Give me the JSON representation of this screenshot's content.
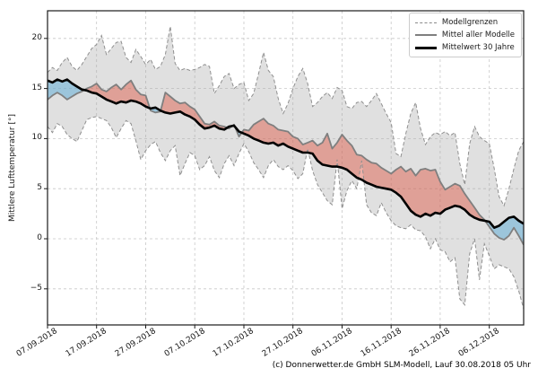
{
  "caption": "(c) Donnerwetter.de GmbH SLM-Modell, Lauf 30.08.2018 05 Uhr",
  "chart_data": {
    "type": "line",
    "title": "",
    "xlabel": "",
    "ylabel": "Mittlere Lufttemperatur [°]",
    "ylim": [
      -8.6,
      22.8
    ],
    "yticks": [
      -5,
      0,
      5,
      10,
      15,
      20
    ],
    "grid": "dashed",
    "legend_position": "upper right",
    "legend": [
      "Modellgrenzen",
      "Mittel aller Modelle",
      "Mittelwert 30 Jahre"
    ],
    "x_tick_labels": [
      "07.09.2018",
      "17.09.2018",
      "27.09.2018",
      "07.10.2018",
      "17.10.2018",
      "27.10.2018",
      "06.11.2018",
      "16.11.2018",
      "26.11.2018",
      "06.12.2018"
    ],
    "x_tick_days": [
      0,
      10,
      20,
      30,
      40,
      50,
      60,
      70,
      80,
      90
    ],
    "n_days": 98,
    "series": [
      {
        "name": "Modellgrenzen (Maximum)",
        "role": "upper",
        "style": "dashed",
        "values": [
          16.6,
          17.1,
          16.8,
          17.6,
          18.1,
          17.2,
          16.8,
          17.4,
          18.2,
          19.0,
          19.4,
          20.3,
          18.4,
          19.0,
          19.6,
          19.7,
          18.1,
          17.6,
          18.9,
          18.2,
          17.4,
          17.9,
          16.9,
          17.2,
          18.4,
          21.2,
          17.5,
          16.8,
          17.0,
          16.8,
          16.9,
          17.1,
          17.4,
          17.2,
          14.5,
          15.3,
          16.2,
          16.5,
          15.0,
          15.4,
          15.6,
          13.8,
          14.5,
          16.5,
          18.6,
          16.8,
          16.2,
          14.0,
          12.5,
          13.5,
          15.0,
          16.2,
          17.0,
          15.5,
          13.2,
          13.6,
          14.2,
          14.6,
          14.0,
          15.1,
          14.8,
          13.2,
          13.0,
          13.6,
          13.7,
          13.2,
          13.8,
          14.5,
          13.5,
          12.5,
          11.6,
          8.5,
          8.2,
          10.5,
          12.5,
          13.6,
          11.0,
          9.4,
          10.2,
          10.6,
          10.4,
          10.7,
          10.3,
          10.6,
          7.5,
          5.4,
          9.5,
          11.2,
          10.2,
          9.8,
          9.5,
          7.0,
          4.2,
          3.3,
          5.0,
          7.0,
          8.8,
          9.7
        ]
      },
      {
        "name": "Modellgrenzen (Minimum)",
        "role": "lower",
        "style": "dashed",
        "values": [
          11.2,
          10.6,
          11.5,
          11.2,
          10.4,
          10.0,
          9.7,
          10.8,
          11.9,
          12.1,
          12.2,
          12.0,
          11.8,
          11.1,
          10.1,
          11.0,
          11.8,
          11.5,
          9.8,
          7.9,
          8.8,
          9.4,
          9.7,
          8.6,
          7.8,
          8.8,
          9.3,
          6.3,
          7.5,
          8.6,
          8.3,
          6.9,
          7.3,
          8.2,
          6.8,
          6.1,
          7.5,
          8.3,
          7.3,
          8.5,
          9.5,
          8.7,
          7.6,
          6.9,
          6.1,
          7.3,
          7.9,
          7.2,
          6.9,
          7.3,
          6.8,
          6.0,
          6.5,
          9.0,
          6.8,
          5.4,
          4.6,
          3.8,
          3.4,
          7.9,
          3.0,
          4.8,
          5.8,
          5.0,
          7.8,
          3.4,
          2.6,
          2.3,
          3.6,
          2.6,
          1.8,
          1.3,
          1.1,
          1.0,
          1.4,
          0.9,
          0.8,
          0.2,
          -1.0,
          0.0,
          -1.1,
          -1.3,
          -2.3,
          -1.9,
          -6.0,
          -6.6,
          -1.5,
          0.0,
          -4.1,
          -0.5,
          -1.7,
          -3.0,
          -2.6,
          -2.8,
          -3.0,
          -3.8,
          -5.2,
          -7.0
        ]
      },
      {
        "name": "Mittel aller Modelle",
        "role": "mean",
        "style": "solid-gray",
        "values": [
          13.9,
          14.3,
          14.6,
          14.3,
          13.9,
          14.2,
          14.5,
          14.7,
          15.0,
          15.2,
          15.5,
          14.9,
          14.7,
          15.1,
          15.4,
          14.9,
          15.4,
          15.8,
          14.9,
          14.4,
          14.3,
          12.8,
          12.6,
          12.7,
          14.6,
          14.2,
          13.8,
          13.5,
          13.6,
          13.2,
          12.9,
          12.2,
          11.5,
          11.4,
          11.7,
          11.3,
          11.2,
          11.0,
          11.4,
          10.2,
          10.9,
          10.8,
          11.4,
          11.7,
          12.0,
          11.5,
          11.3,
          10.9,
          10.8,
          10.7,
          10.2,
          10.0,
          9.4,
          9.6,
          9.8,
          9.3,
          9.6,
          10.5,
          9.0,
          9.6,
          10.4,
          9.8,
          9.3,
          8.4,
          8.3,
          7.9,
          7.6,
          7.5,
          7.1,
          6.8,
          6.5,
          6.9,
          7.2,
          6.7,
          7.0,
          6.3,
          6.9,
          7.0,
          6.8,
          6.9,
          5.7,
          4.9,
          5.2,
          5.5,
          5.3,
          4.5,
          3.8,
          3.1,
          2.4,
          1.9,
          1.2,
          0.5,
          0.1,
          -0.1,
          0.3,
          1.1,
          0.3,
          -0.6
        ]
      },
      {
        "name": "Mittelwert 30 Jahre",
        "role": "climate",
        "style": "solid-black",
        "values": [
          15.8,
          15.6,
          15.9,
          15.7,
          15.9,
          15.5,
          15.2,
          14.9,
          14.8,
          14.6,
          14.5,
          14.2,
          13.9,
          13.7,
          13.5,
          13.7,
          13.6,
          13.8,
          13.7,
          13.5,
          13.2,
          13.0,
          13.1,
          12.8,
          12.6,
          12.5,
          12.6,
          12.7,
          12.4,
          12.2,
          11.9,
          11.4,
          11.0,
          11.1,
          11.3,
          11.0,
          10.9,
          11.2,
          11.3,
          10.7,
          10.5,
          10.3,
          10.0,
          9.8,
          9.6,
          9.5,
          9.6,
          9.3,
          9.5,
          9.2,
          9.0,
          8.8,
          8.6,
          8.6,
          8.5,
          7.8,
          7.4,
          7.3,
          7.2,
          7.2,
          7.1,
          6.9,
          6.5,
          6.1,
          5.9,
          5.6,
          5.4,
          5.2,
          5.1,
          5.0,
          4.9,
          4.6,
          4.2,
          3.5,
          2.8,
          2.4,
          2.2,
          2.5,
          2.3,
          2.6,
          2.5,
          2.9,
          3.1,
          3.3,
          3.2,
          2.9,
          2.4,
          2.1,
          1.9,
          1.8,
          1.7,
          1.1,
          1.3,
          1.7,
          2.1,
          2.2,
          1.8,
          1.5
        ]
      }
    ],
    "fills": {
      "envelope": "between upper and lower model bounds",
      "above_normal": "mean above 30-year climate (warm anomaly)",
      "below_normal": "mean below 30-year climate (cold anomaly)"
    },
    "colors": {
      "envelope_fill": "rgba(165,165,165,0.35)",
      "above_normal_fill": "rgba(222,90,72,0.48)",
      "below_normal_fill": "rgba(100,175,215,0.55)",
      "boundary_line": "#8f8f8f",
      "mean_line": "#7f7f7f",
      "climate_line": "#000000",
      "grid": "#c8c8c8",
      "spine": "#1a1a1a"
    }
  }
}
